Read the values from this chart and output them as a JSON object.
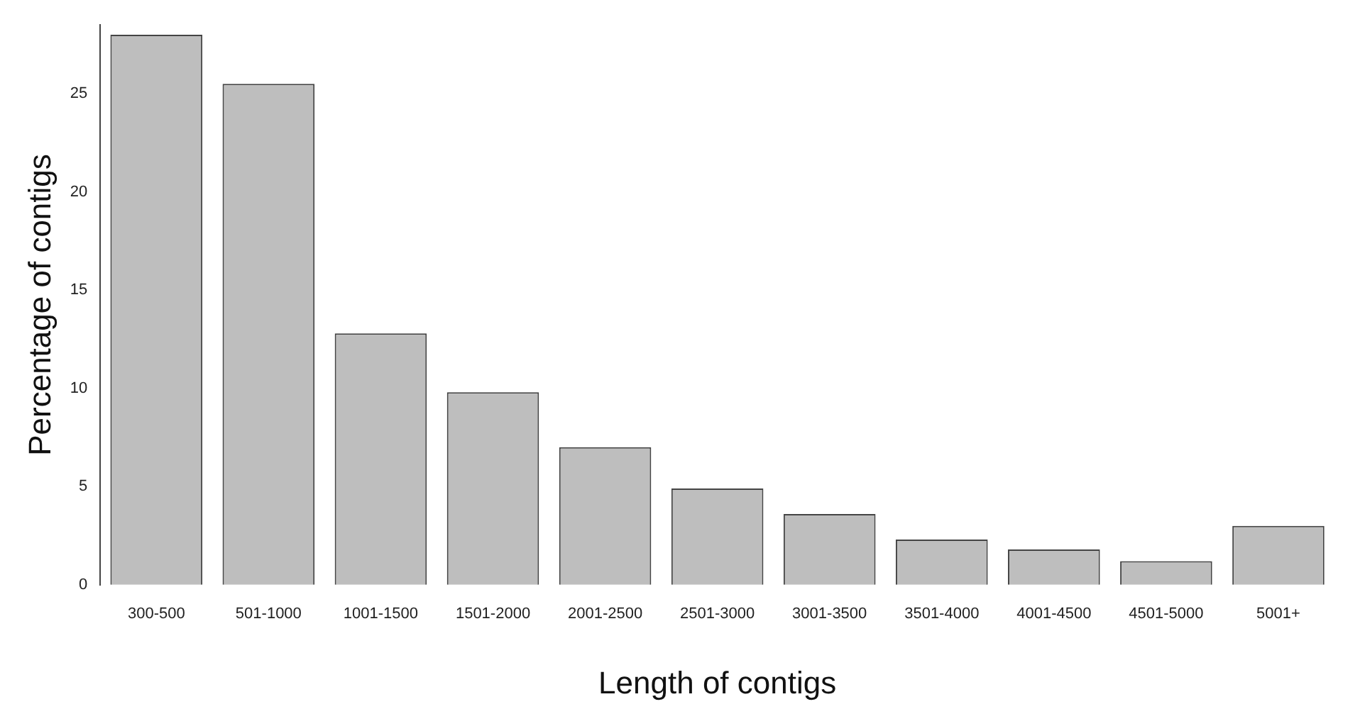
{
  "chart_data": {
    "type": "bar",
    "xlabel": "Length of contigs",
    "ylabel": "Percentage of contigs",
    "categories": [
      "300-500",
      "501-1000",
      "1001-1500",
      "1501-2000",
      "2001-2500",
      "2501-3000",
      "3001-3500",
      "3501-4000",
      "4001-4500",
      "4501-5000",
      "5001+"
    ],
    "values": [
      28.0,
      25.5,
      12.8,
      9.8,
      7.0,
      4.9,
      3.6,
      2.3,
      1.8,
      1.2,
      3.0
    ],
    "color": "#bebebe",
    "ylim": [
      0,
      28.5
    ],
    "yticks": [
      0,
      5,
      10,
      15,
      20,
      25
    ],
    "grid": false,
    "legend": false
  }
}
